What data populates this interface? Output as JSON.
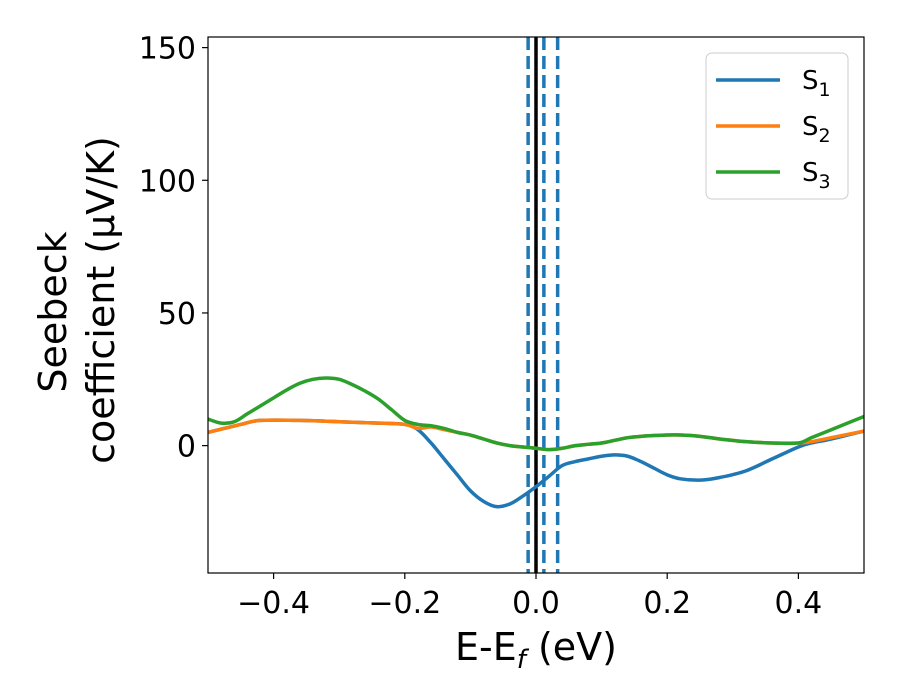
{
  "chart_data": {
    "type": "line",
    "xlabel": "E-E$_f$ (eV)",
    "xlabel_main": "E-E",
    "xlabel_sub": "f",
    "xlabel_tail": " (eV)",
    "ylabel_line1": "Seebeck",
    "ylabel_line2": "coefficient  (μV/K)",
    "xlim": [
      -0.5,
      0.5
    ],
    "ylim": [
      -48,
      154
    ],
    "xticks": [
      -0.4,
      -0.2,
      0.0,
      0.2,
      0.4
    ],
    "xtick_labels": [
      "−0.4",
      "−0.2",
      "0.0",
      "0.2",
      "0.4"
    ],
    "yticks": [
      0,
      50,
      100,
      150
    ],
    "ytick_labels": [
      "0",
      "50",
      "100",
      "150"
    ],
    "grid": false,
    "legend_position": "top-right",
    "vlines": [
      {
        "x": 0.0,
        "color": "#000000",
        "style": "solid"
      },
      {
        "x": -0.012,
        "color": "#1f77b4",
        "style": "dashed"
      },
      {
        "x": 0.012,
        "color": "#1f77b4",
        "style": "dashed"
      },
      {
        "x": 0.033,
        "color": "#1f77b4",
        "style": "dashed"
      }
    ],
    "series": [
      {
        "name": "S",
        "name_sub": "1",
        "color": "#1f77b4",
        "points": [
          [
            -0.5,
            5
          ],
          [
            -0.45,
            8
          ],
          [
            -0.42,
            9.5
          ],
          [
            -0.36,
            9.5
          ],
          [
            -0.3,
            9
          ],
          [
            -0.24,
            8.5
          ],
          [
            -0.2,
            8
          ],
          [
            -0.18,
            6
          ],
          [
            -0.16,
            1
          ],
          [
            -0.14,
            -5
          ],
          [
            -0.12,
            -11
          ],
          [
            -0.1,
            -17
          ],
          [
            -0.08,
            -21
          ],
          [
            -0.06,
            -23
          ],
          [
            -0.04,
            -22
          ],
          [
            -0.02,
            -19
          ],
          [
            0.0,
            -15.5
          ],
          [
            0.02,
            -11.5
          ],
          [
            0.04,
            -7.5
          ],
          [
            0.06,
            -6
          ],
          [
            0.08,
            -5
          ],
          [
            0.1,
            -4
          ],
          [
            0.12,
            -3.5
          ],
          [
            0.14,
            -4
          ],
          [
            0.16,
            -6
          ],
          [
            0.18,
            -8.5
          ],
          [
            0.2,
            -11
          ],
          [
            0.22,
            -12.5
          ],
          [
            0.25,
            -13
          ],
          [
            0.28,
            -12
          ],
          [
            0.32,
            -9.5
          ],
          [
            0.36,
            -5
          ],
          [
            0.4,
            -0.5
          ],
          [
            0.42,
            1
          ],
          [
            0.45,
            2.5
          ],
          [
            0.5,
            5.5
          ]
        ]
      },
      {
        "name": "S",
        "name_sub": "2",
        "color": "#ff7f0e",
        "points": [
          [
            -0.5,
            5
          ],
          [
            -0.45,
            8
          ],
          [
            -0.42,
            9.5
          ],
          [
            -0.36,
            9.5
          ],
          [
            -0.3,
            9
          ],
          [
            -0.24,
            8.5
          ],
          [
            -0.2,
            8
          ],
          [
            -0.18,
            6.5
          ],
          [
            -0.16,
            7
          ],
          [
            -0.14,
            6
          ],
          [
            -0.12,
            5
          ],
          [
            -0.1,
            4
          ],
          [
            -0.08,
            2.5
          ],
          [
            -0.06,
            1
          ],
          [
            -0.04,
            0
          ],
          [
            -0.02,
            -0.5
          ],
          [
            0.0,
            -1
          ],
          [
            0.02,
            -1.5
          ],
          [
            0.04,
            -1
          ],
          [
            0.06,
            0
          ],
          [
            0.08,
            0.5
          ],
          [
            0.1,
            1
          ],
          [
            0.12,
            2
          ],
          [
            0.14,
            3
          ],
          [
            0.16,
            3.5
          ],
          [
            0.18,
            3.8
          ],
          [
            0.2,
            4
          ],
          [
            0.22,
            4
          ],
          [
            0.25,
            3.5
          ],
          [
            0.28,
            2.5
          ],
          [
            0.32,
            1.5
          ],
          [
            0.36,
            1
          ],
          [
            0.4,
            1
          ],
          [
            0.42,
            1.5
          ],
          [
            0.45,
            3
          ],
          [
            0.5,
            5.5
          ]
        ]
      },
      {
        "name": "S",
        "name_sub": "3",
        "color": "#2ca02c",
        "points": [
          [
            -0.5,
            10
          ],
          [
            -0.48,
            8.5
          ],
          [
            -0.46,
            9
          ],
          [
            -0.44,
            12
          ],
          [
            -0.42,
            15
          ],
          [
            -0.4,
            18
          ],
          [
            -0.38,
            21
          ],
          [
            -0.36,
            23.5
          ],
          [
            -0.34,
            25
          ],
          [
            -0.32,
            25.5
          ],
          [
            -0.3,
            25
          ],
          [
            -0.28,
            23
          ],
          [
            -0.26,
            20.5
          ],
          [
            -0.24,
            17.5
          ],
          [
            -0.22,
            13.5
          ],
          [
            -0.2,
            9.5
          ],
          [
            -0.18,
            8
          ],
          [
            -0.16,
            7.5
          ],
          [
            -0.14,
            6.5
          ],
          [
            -0.12,
            5
          ],
          [
            -0.1,
            4
          ],
          [
            -0.08,
            2.5
          ],
          [
            -0.06,
            1
          ],
          [
            -0.04,
            0
          ],
          [
            -0.02,
            -0.5
          ],
          [
            0.0,
            -1
          ],
          [
            0.02,
            -1.5
          ],
          [
            0.04,
            -1
          ],
          [
            0.06,
            0
          ],
          [
            0.08,
            0.5
          ],
          [
            0.1,
            1
          ],
          [
            0.12,
            2
          ],
          [
            0.14,
            3
          ],
          [
            0.16,
            3.5
          ],
          [
            0.18,
            3.8
          ],
          [
            0.2,
            4
          ],
          [
            0.22,
            4
          ],
          [
            0.25,
            3.5
          ],
          [
            0.28,
            2.5
          ],
          [
            0.32,
            1.5
          ],
          [
            0.36,
            1
          ],
          [
            0.4,
            1
          ],
          [
            0.42,
            3
          ],
          [
            0.45,
            6
          ],
          [
            0.48,
            9
          ],
          [
            0.5,
            11
          ]
        ]
      }
    ]
  }
}
